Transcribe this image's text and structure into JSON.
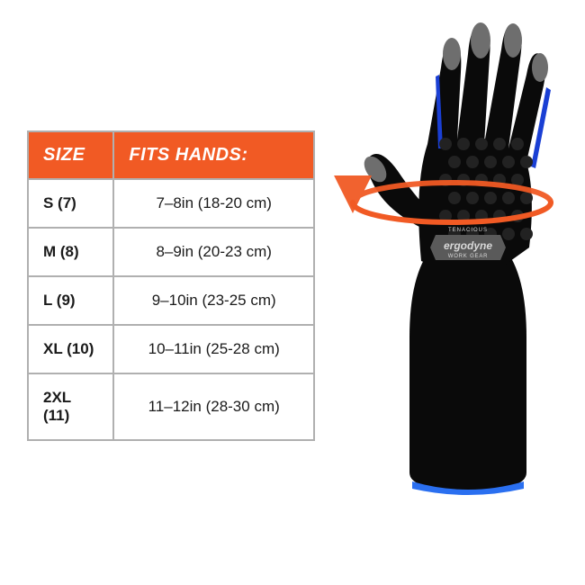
{
  "colors": {
    "header_bg": "#f15a24",
    "header_text": "#ffffff",
    "table_border": "#b0b0b0",
    "text": "#1a1a1a",
    "glove_body": "#0a0a0a",
    "glove_shadow": "#1c1c1c",
    "glove_fingertip": "#6e6e6e",
    "glove_accent": "#1a3fd4",
    "glove_cuff_accent": "#2a6ff0",
    "arrow": "#f15a24",
    "badge_bg": "#5a5a5a",
    "badge_text": "#d8d8d8",
    "palm_dot": "#222222",
    "background": "#ffffff"
  },
  "table": {
    "columns": [
      "SIZE",
      "FITS HANDS:"
    ],
    "col_size_width_pct": 30,
    "header_fontsize": 20,
    "cell_fontsize": 17,
    "rows": [
      {
        "size": "S (7)",
        "fits": "7–8in (18-20 cm)"
      },
      {
        "size": "M (8)",
        "fits": "8–9in (20-23 cm)"
      },
      {
        "size": "L (9)",
        "fits": "9–10in (23-25 cm)"
      },
      {
        "size": "XL (10)",
        "fits": "10–11in (25-28 cm)"
      },
      {
        "size": "2XL (11)",
        "fits": "11–12in (28-30 cm)"
      }
    ]
  },
  "badge": {
    "line1": "TENACIOUS",
    "line2": "ergodyne",
    "line3": "WORK GEAR"
  },
  "glove": {
    "type": "product-illustration",
    "view": "left-hand-back",
    "palm_dot_rows": 6,
    "palm_dot_cols": 5
  },
  "measurement_indicator": {
    "type": "ellipse-arrow",
    "color": "#f15a24",
    "stroke_width": 6
  }
}
